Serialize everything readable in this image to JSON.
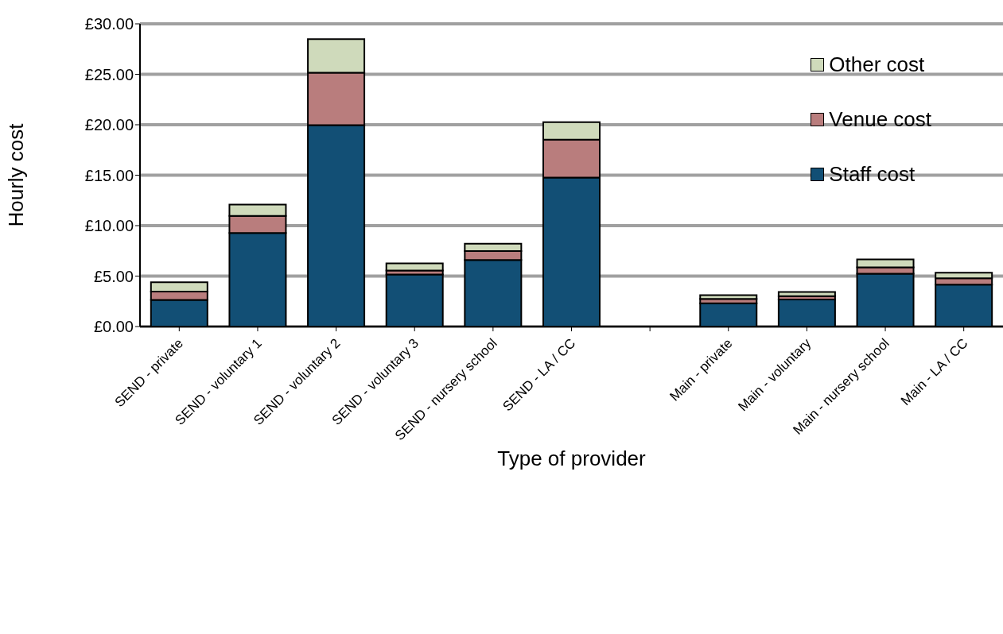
{
  "chart_data": {
    "type": "bar",
    "stacked": true,
    "xlabel": "Type of provider",
    "ylabel": "Hourly cost",
    "categories": [
      "SEND - private",
      "SEND - voluntary 1",
      "SEND - voluntary 2",
      "SEND - voluntary 3",
      "SEND - nursery school",
      "SEND - LA / CC",
      null,
      "Main - private",
      "Main - voluntary",
      "Main - nursery school",
      "Main - LA / CC"
    ],
    "series": [
      {
        "name": "Staff cost",
        "color": "#124f75",
        "values": [
          2.64,
          9.28,
          19.97,
          5.16,
          6.59,
          14.76,
          null,
          2.31,
          2.67,
          5.23,
          4.16
        ]
      },
      {
        "name": "Venue cost",
        "color": "#b97d7d",
        "values": [
          0.83,
          1.69,
          5.19,
          0.39,
          0.89,
          3.76,
          null,
          0.43,
          0.35,
          0.64,
          0.63
        ]
      },
      {
        "name": "Other cost",
        "color": "#cfdabb",
        "values": [
          0.92,
          1.12,
          3.32,
          0.71,
          0.72,
          1.73,
          null,
          0.37,
          0.41,
          0.78,
          0.55
        ]
      }
    ],
    "ylim": [
      0,
      30
    ],
    "yticks": [
      {
        "value": 0,
        "label": "£0.00"
      },
      {
        "value": 5,
        "label": "£5.00"
      },
      {
        "value": 10,
        "label": "£10.00"
      },
      {
        "value": 15,
        "label": "£15.00"
      },
      {
        "value": 20,
        "label": "£20.00"
      },
      {
        "value": 25,
        "label": "£25.00"
      },
      {
        "value": 30,
        "label": "£30.00"
      }
    ],
    "grid": "y",
    "legend": "top right"
  }
}
